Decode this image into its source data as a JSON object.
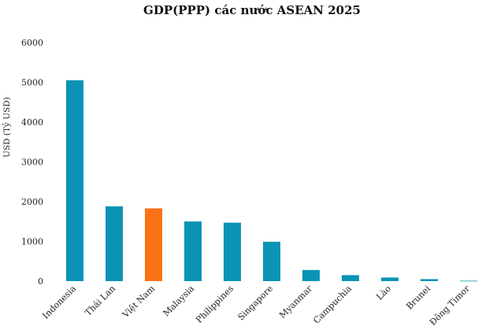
{
  "chart_data": {
    "type": "bar",
    "title": "GDP(PPP) các nước ASEAN 2025",
    "xlabel": "",
    "ylabel": "USD (Tỷ USD)",
    "ylim": [
      0,
      6000
    ],
    "yticks": [
      "0",
      "1000",
      "2000",
      "3000",
      "4000",
      "5000",
      "6000"
    ],
    "grid": false,
    "categories": [
      "Indonesia",
      "Thái Lan",
      "Việt Nam",
      "Malaysia",
      "Philippines",
      "Singapore",
      "Myanmar",
      "Campuchia",
      "Lào",
      "Brunei",
      "Đông Timor"
    ],
    "values": [
      5050,
      1880,
      1830,
      1500,
      1470,
      990,
      280,
      150,
      90,
      50,
      10
    ],
    "colors": {
      "default": "#0a93b5",
      "highlight": "#f97316",
      "highlight_category": "Việt Nam"
    }
  }
}
